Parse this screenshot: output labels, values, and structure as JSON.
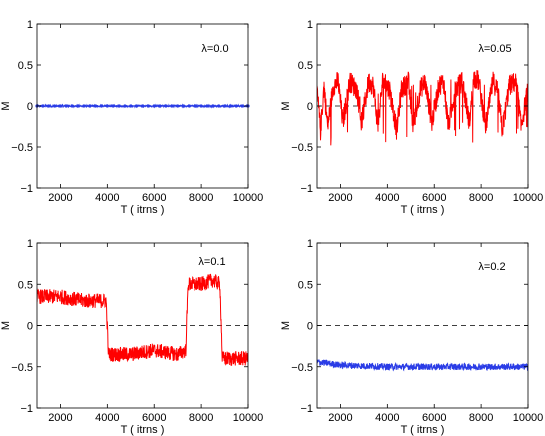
{
  "chart_data": [
    {
      "type": "line",
      "annotation": "λ=0.0",
      "xlabel": "T ( itrns )",
      "ylabel": "M",
      "xlim": [
        1000,
        10000
      ],
      "ylim": [
        -1,
        1
      ],
      "xticks": [
        "2000",
        "4000",
        "6000",
        "8000",
        "10000"
      ],
      "yticks": [
        "1",
        "0.5",
        "0",
        "−0.5",
        "−1"
      ],
      "reference_line_y": 0,
      "series": [
        {
          "color": "#2a3ce6",
          "marker": "dot",
          "x": [
            1000,
            10000
          ],
          "y": [
            0.0,
            0.0
          ],
          "noise": 0.01
        }
      ]
    },
    {
      "type": "line",
      "annotation": "λ=0.05",
      "xlabel": "T ( itrns )",
      "ylabel": "M",
      "xlim": [
        1000,
        10000
      ],
      "ylim": [
        -1,
        1
      ],
      "xticks": [
        "2000",
        "4000",
        "6000",
        "8000",
        "10000"
      ],
      "yticks": [
        "1",
        "0.5",
        "0",
        "−0.5",
        "−1"
      ],
      "reference_line_y": 0,
      "series": [
        {
          "color": "#ff0000",
          "x": [
            1000,
            1150,
            1300,
            1450,
            1700,
            1900,
            2100,
            2400,
            2700,
            2900,
            3200,
            3400,
            3600,
            3800,
            4100,
            4400,
            4600,
            4900,
            5100,
            5400,
            5600,
            5900,
            6200,
            6400,
            6600,
            6900,
            7200,
            7500,
            7700,
            7900,
            8200,
            8500,
            8700,
            8900,
            9200,
            9500,
            9700,
            10000
          ],
          "y": [
            0.2,
            -0.3,
            0.25,
            -0.25,
            0.25,
            0.3,
            -0.2,
            0.3,
            0.2,
            -0.2,
            0.3,
            0.25,
            -0.25,
            0.3,
            0.2,
            -0.3,
            0.2,
            0.3,
            -0.25,
            0.2,
            0.3,
            -0.2,
            0.25,
            0.3,
            -0.25,
            0.2,
            0.3,
            -0.2,
            0.35,
            0.3,
            -0.25,
            0.3,
            0.2,
            -0.3,
            0.25,
            0.3,
            -0.25,
            0.2
          ],
          "noise": 0.13
        }
      ]
    },
    {
      "type": "line",
      "annotation": "λ=0.1",
      "xlabel": "T ( itrns )",
      "ylabel": "M",
      "xlim": [
        1000,
        10000
      ],
      "ylim": [
        -1,
        1
      ],
      "xticks": [
        "2000",
        "4000",
        "6000",
        "8000",
        "10000"
      ],
      "yticks": [
        "1",
        "0.5",
        "0",
        "−0.5",
        "−1"
      ],
      "reference_line_y": 0,
      "series": [
        {
          "color": "#ff0000",
          "x": [
            1000,
            2000,
            3000,
            3950,
            4050,
            5000,
            6000,
            7000,
            7350,
            7450,
            8000,
            8500,
            8800,
            8900,
            9500,
            10000
          ],
          "y": [
            0.35,
            0.35,
            0.3,
            0.3,
            -0.35,
            -0.35,
            -0.3,
            -0.35,
            -0.3,
            0.5,
            0.5,
            0.55,
            0.5,
            -0.4,
            -0.4,
            -0.4
          ],
          "noise": 0.09
        }
      ]
    },
    {
      "type": "line",
      "annotation": "λ=0.2",
      "xlabel": "T ( itrns )",
      "ylabel": "M",
      "xlim": [
        1000,
        10000
      ],
      "ylim": [
        -1,
        1
      ],
      "xticks": [
        "2000",
        "4000",
        "6000",
        "8000",
        "10000"
      ],
      "yticks": [
        "1",
        "0.5",
        "0",
        "−0.5",
        "−1"
      ],
      "reference_line_y": 0,
      "series": [
        {
          "color": "#2a3ce6",
          "x": [
            1000,
            2000,
            4000,
            6000,
            8000,
            10000
          ],
          "y": [
            -0.44,
            -0.48,
            -0.5,
            -0.5,
            -0.5,
            -0.5
          ],
          "noise": 0.04
        }
      ]
    }
  ]
}
